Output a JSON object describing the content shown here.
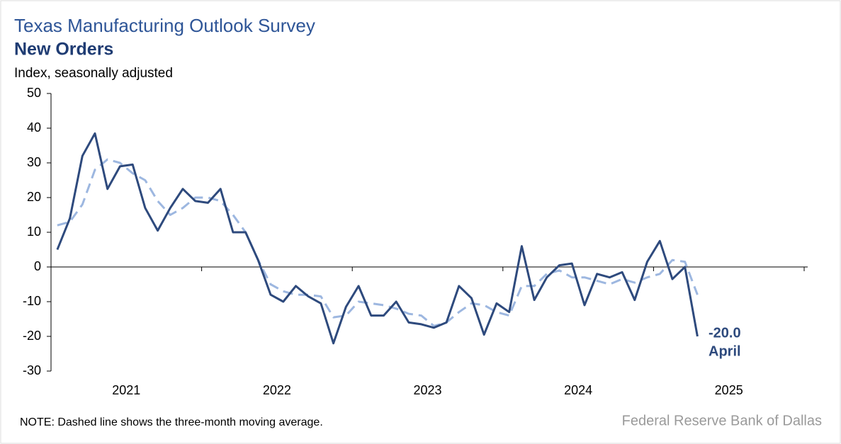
{
  "chart_data": {
    "type": "line",
    "title": "Texas Manufacturing Outlook Survey",
    "subtitle": "New Orders",
    "y_label": "Index, seasonally adjusted",
    "note": "NOTE: Dashed line shows the three-month  moving average.",
    "source": "Federal Reserve Bank of Dallas",
    "annotations": [
      "-20.0",
      "April"
    ],
    "x": [
      "2021-01",
      "2021-02",
      "2021-03",
      "2021-04",
      "2021-05",
      "2021-06",
      "2021-07",
      "2021-08",
      "2021-09",
      "2021-10",
      "2021-11",
      "2021-12",
      "2022-01",
      "2022-02",
      "2022-03",
      "2022-04",
      "2022-05",
      "2022-06",
      "2022-07",
      "2022-08",
      "2022-09",
      "2022-10",
      "2022-11",
      "2022-12",
      "2023-01",
      "2023-02",
      "2023-03",
      "2023-04",
      "2023-05",
      "2023-06",
      "2023-07",
      "2023-08",
      "2023-09",
      "2023-10",
      "2023-11",
      "2023-12",
      "2024-01",
      "2024-02",
      "2024-03",
      "2024-04",
      "2024-05",
      "2024-06",
      "2024-07",
      "2024-08",
      "2024-09",
      "2024-10",
      "2024-11",
      "2024-12",
      "2025-01",
      "2025-02",
      "2025-03",
      "2025-04"
    ],
    "series": [
      {
        "color": "#2e4a7d",
        "dashed": false,
        "values": [
          5,
          14,
          32,
          38.5,
          22.5,
          29,
          29.5,
          17,
          10.5,
          17,
          22.5,
          19,
          18.5,
          22.5,
          10,
          10,
          2,
          -8,
          -10,
          -5.5,
          -8.5,
          -10.5,
          -22,
          -11.5,
          -5.5,
          -14,
          -14,
          -10,
          -16,
          -16.5,
          -17.5,
          -16,
          -5.5,
          -9,
          -19.5,
          -10.5,
          -13,
          6,
          -9.5,
          -3,
          0.5,
          1,
          -11,
          -2,
          -3,
          -1.5,
          -9.5,
          1.5,
          7.5,
          -3.5,
          0,
          -20
        ]
      },
      {
        "color": "#9db7e0",
        "dashed": true,
        "values": [
          12,
          13,
          18,
          28,
          31,
          30,
          27,
          25,
          19,
          15,
          17,
          20,
          20,
          19,
          15,
          10,
          2,
          -5,
          -7,
          -8,
          -8,
          -8.5,
          -14.5,
          -14,
          -10,
          -10.5,
          -11,
          -12,
          -13.5,
          -14,
          -17,
          -16,
          -13,
          -10.5,
          -11,
          -13,
          -14,
          -5.5,
          -5.5,
          -2,
          -1,
          -3,
          -3,
          -4,
          -5,
          -3.5,
          -4.5,
          -3,
          -2,
          2,
          1.5,
          -8
        ]
      }
    ],
    "xlim": [
      2021,
      2026
    ],
    "xticks": [
      2021,
      2022,
      2023,
      2024,
      2025
    ],
    "ylim": [
      -30,
      50
    ],
    "yticks": [
      -30,
      -20,
      -10,
      0,
      10,
      20,
      30,
      40,
      50
    ],
    "grid": false
  }
}
